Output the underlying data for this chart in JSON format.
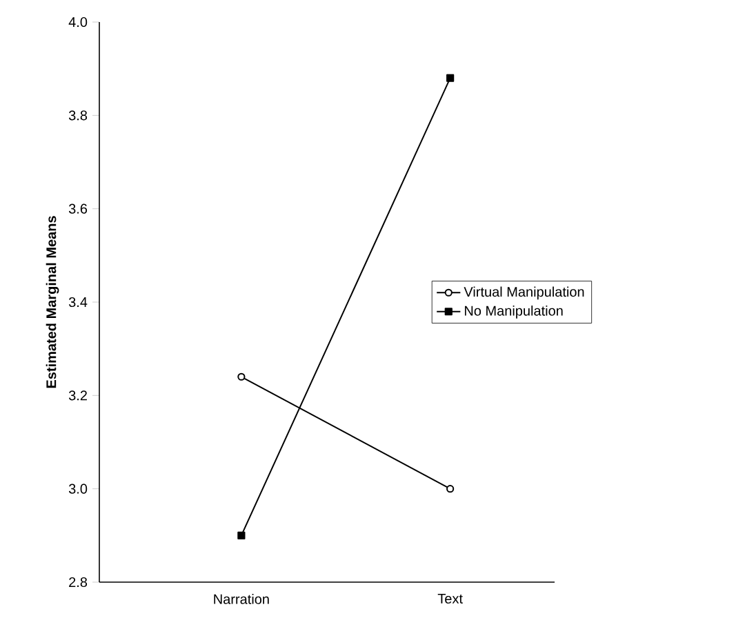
{
  "chart_data": {
    "type": "line",
    "ylabel": "Estimated Marginal Means",
    "categories": [
      "Narration",
      "Text"
    ],
    "series": [
      {
        "name": "Virtual Manipulation",
        "color": "#000000",
        "marker": "circle",
        "values": [
          3.24,
          3.0
        ]
      },
      {
        "name": "No Manipulation",
        "color": "#000000",
        "marker": "square",
        "values": [
          2.9,
          3.88
        ]
      }
    ],
    "ylim": [
      2.8,
      4.0
    ],
    "yticks": [
      {
        "value": 2.8,
        "label": "2.8"
      },
      {
        "value": 3.0,
        "label": "3.0"
      },
      {
        "value": 3.2,
        "label": "3.2"
      },
      {
        "value": 3.4,
        "label": "3.4"
      },
      {
        "value": 3.6,
        "label": "3.6"
      },
      {
        "value": 3.8,
        "label": "3.8"
      },
      {
        "value": 4.0,
        "label": "4.0"
      }
    ],
    "legend": "right",
    "grid": false,
    "line_style": "solid"
  }
}
